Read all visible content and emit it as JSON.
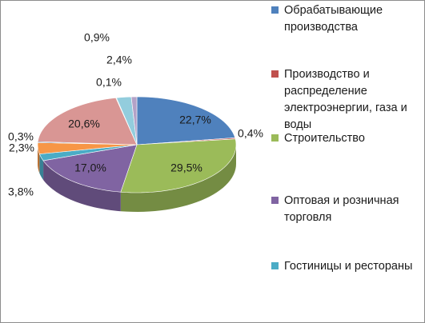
{
  "chart_data": {
    "type": "pie",
    "categories": [
      "Обрабатывающие производства",
      "Производство и распределение электроэнергии, газа и воды",
      "Строительство",
      "Оптовая и розничная торговля",
      "Гостиницы и рестораны",
      null,
      null,
      null,
      null,
      null,
      null
    ],
    "values": [
      22.7,
      0.4,
      29.5,
      17.0,
      2.3,
      3.8,
      0.3,
      20.6,
      0.1,
      2.4,
      0.9
    ],
    "value_labels": [
      "22,7%",
      "0,4%",
      "29,5%",
      "17,0%",
      "2,3%",
      "3,8%",
      "0,3%",
      "20,6%",
      "0,1%",
      "2,4%",
      "0,9%"
    ],
    "colors": [
      "#4f81bd",
      "#c0504d",
      "#9bbb59",
      "#8064a2",
      "#4bacc6",
      "#f79646",
      "#2c4d75",
      "#d99694",
      "#c3d69b",
      "#93cddd",
      "#b3a2c7"
    ],
    "legend": "right"
  }
}
